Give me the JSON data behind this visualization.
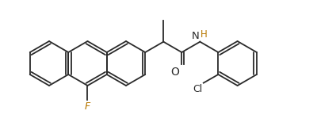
{
  "bg_color": "#ffffff",
  "line_color": "#2a2a2a",
  "color_F": "#b87800",
  "color_Cl": "#2a2a2a",
  "color_O": "#2a2a2a",
  "color_N": "#2a2a2a",
  "color_H": "#b87800",
  "figsize": [
    4.0,
    1.59
  ],
  "dpi": 100,
  "r": 0.28,
  "lw": 1.3,
  "xlim": [
    0.0,
    4.0
  ],
  "ylim": [
    0.0,
    1.59
  ]
}
